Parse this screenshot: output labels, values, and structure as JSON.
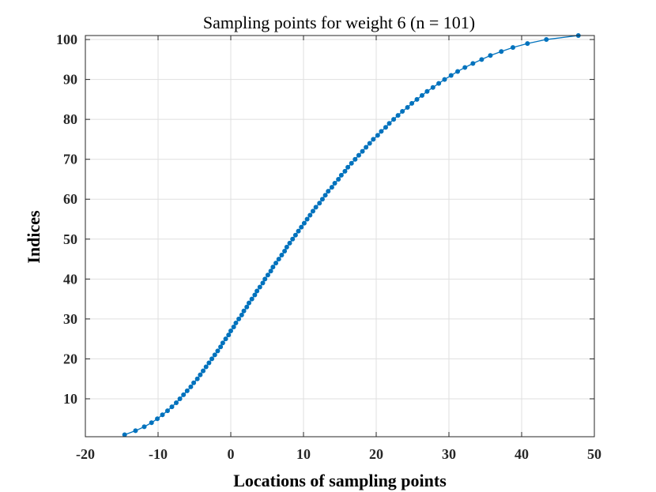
{
  "chart_data": {
    "type": "line",
    "title": "Sampling points for weight 6  (n = 101)",
    "xlabel": "Locations of sampling points",
    "ylabel": "Indices",
    "xlim": [
      -20,
      50
    ],
    "ylim": [
      0.5,
      101
    ],
    "grid": true,
    "xticks": [
      -20,
      -10,
      0,
      10,
      20,
      30,
      40,
      50
    ],
    "yticks": [
      10,
      20,
      30,
      40,
      50,
      60,
      70,
      80,
      90,
      100
    ],
    "xtick_labels": [
      "-20",
      "-10",
      "0",
      "10",
      "20",
      "30",
      "40",
      "50"
    ],
    "ytick_labels": [
      "10",
      "20",
      "30",
      "40",
      "50",
      "60",
      "70",
      "80",
      "90",
      "100"
    ],
    "series": [
      {
        "name": "sampling points",
        "color": "#0072bd",
        "marker": "dot",
        "x": [
          -14.6,
          -13.1,
          -11.9,
          -10.9,
          -10.1,
          -9.4,
          -8.7,
          -8.1,
          -7.5,
          -7.0,
          -6.5,
          -6.0,
          -5.5,
          -5.1,
          -4.6,
          -4.2,
          -3.8,
          -3.4,
          -3.0,
          -2.6,
          -2.2,
          -1.8,
          -1.4,
          -1.1,
          -0.7,
          -0.3,
          0.0,
          0.4,
          0.7,
          1.1,
          1.5,
          1.8,
          2.2,
          2.5,
          2.9,
          3.3,
          3.6,
          4.0,
          4.4,
          4.7,
          5.1,
          5.5,
          5.8,
          6.2,
          6.6,
          7.0,
          7.4,
          7.7,
          8.1,
          8.5,
          8.9,
          9.3,
          9.7,
          10.1,
          10.5,
          10.9,
          11.3,
          11.7,
          12.2,
          12.6,
          13.0,
          13.4,
          13.9,
          14.3,
          14.8,
          15.2,
          15.7,
          16.1,
          16.6,
          17.1,
          17.6,
          18.1,
          18.6,
          19.1,
          19.6,
          20.2,
          20.7,
          21.3,
          21.8,
          22.4,
          23.0,
          23.6,
          24.3,
          24.9,
          25.6,
          26.3,
          27.0,
          27.8,
          28.6,
          29.4,
          30.3,
          31.2,
          32.2,
          33.3,
          34.5,
          35.7,
          37.2,
          38.8,
          40.8,
          43.4,
          47.8
        ],
        "y": [
          1,
          2,
          3,
          4,
          5,
          6,
          7,
          8,
          9,
          10,
          11,
          12,
          13,
          14,
          15,
          16,
          17,
          18,
          19,
          20,
          21,
          22,
          23,
          24,
          25,
          26,
          27,
          28,
          29,
          30,
          31,
          32,
          33,
          34,
          35,
          36,
          37,
          38,
          39,
          40,
          41,
          42,
          43,
          44,
          45,
          46,
          47,
          48,
          49,
          50,
          51,
          52,
          53,
          54,
          55,
          56,
          57,
          58,
          59,
          60,
          61,
          62,
          63,
          64,
          65,
          66,
          67,
          68,
          69,
          70,
          71,
          72,
          73,
          74,
          75,
          76,
          77,
          78,
          79,
          80,
          81,
          82,
          83,
          84,
          85,
          86,
          87,
          88,
          89,
          90,
          91,
          92,
          93,
          94,
          95,
          96,
          97,
          98,
          99,
          100,
          101
        ]
      }
    ]
  }
}
